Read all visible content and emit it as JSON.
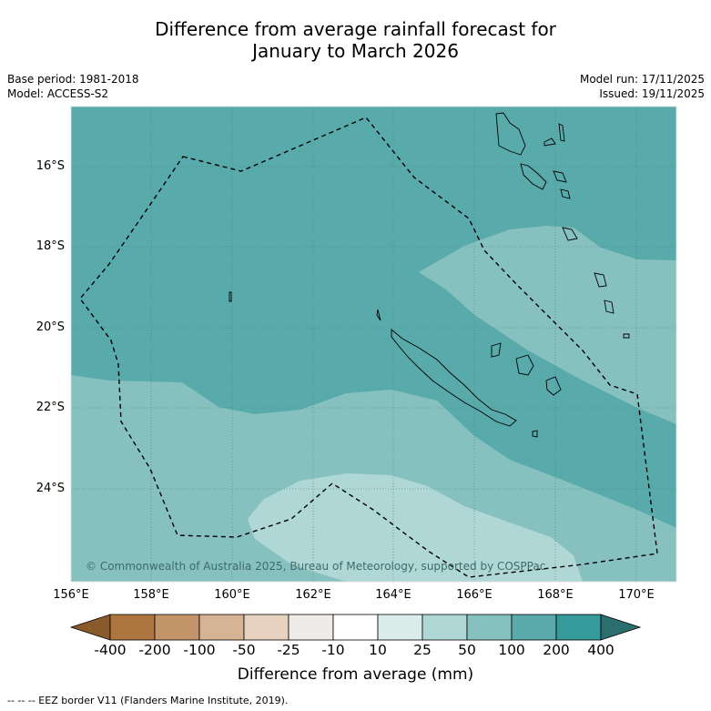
{
  "title": {
    "line1": "Difference from average rainfall forecast for",
    "line2": "January to March 2026"
  },
  "meta": {
    "base_period": "Base period: 1981-2018",
    "model": "Model: ACCESS-S2",
    "model_run": "Model run: 17/11/2025",
    "issued": "Issued: 19/11/2025"
  },
  "axes": {
    "lat_labels": [
      "16°S",
      "18°S",
      "20°S",
      "22°S",
      "24°S"
    ],
    "lon_labels": [
      "156°E",
      "158°E",
      "160°E",
      "162°E",
      "164°E",
      "166°E",
      "168°E",
      "170°E"
    ]
  },
  "copyright": "© Commonwealth of Australia 2025, Bureau of Meteorology, supported by COSPPac",
  "colorbar": {
    "title": "Difference from average (mm)",
    "labels": [
      "-400",
      "-200",
      "-100",
      "-50",
      "-25",
      "-10",
      "10",
      "25",
      "50",
      "100",
      "200",
      "400"
    ],
    "colors": [
      "#8b5a2b",
      "#ad753f",
      "#c3946a",
      "#d5b394",
      "#e6d2bf",
      "#efebe8",
      "#ffffff",
      "#d9ecea",
      "#afd7d5",
      "#86c1c0",
      "#59aaab",
      "#36999a",
      "#2c6e6e"
    ]
  },
  "footnote": "-- -- -- EEZ border V11 (Flanders Marine Institute, 2019)."
}
